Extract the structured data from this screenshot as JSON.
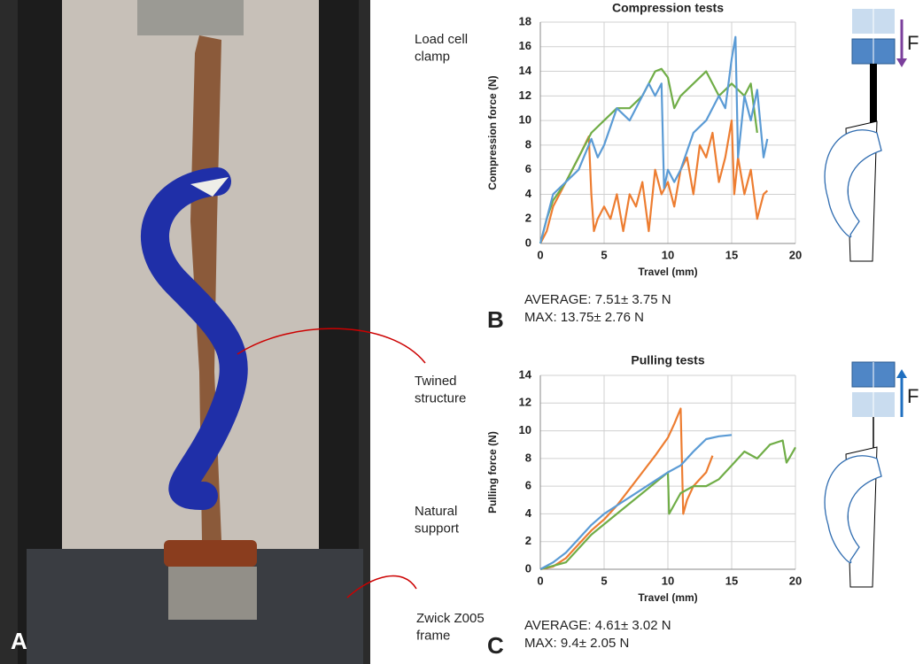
{
  "photo": {
    "panel_label": "A",
    "labels": [
      "Load cell clamp",
      "Twined structure",
      "Natural support",
      "Zwick Z005 frame"
    ]
  },
  "chart_data": [
    {
      "type": "line",
      "panel_label": "B",
      "title": "Compression tests",
      "x_label": "Travel (mm)",
      "y_label": "Compression force (N)",
      "xlim": [
        0,
        20
      ],
      "xticks": [
        0,
        5,
        10,
        15,
        20
      ],
      "ylim": [
        0,
        18
      ],
      "yticks": [
        0,
        2,
        4,
        6,
        8,
        10,
        12,
        14,
        16,
        18
      ],
      "grid": true,
      "annotations": [
        "AVERAGE: 7.51± 3.75 N",
        "MAX: 13.75± 2.76 N"
      ],
      "force_label": "F",
      "force_direction": "down",
      "series": [
        {
          "color": "#ed7d31",
          "x": [
            0,
            0.5,
            1,
            2,
            3,
            3.8,
            4,
            4.2,
            4.5,
            5,
            5.5,
            6,
            6.5,
            7,
            7.5,
            8,
            8.5,
            9,
            9.5,
            10,
            10.5,
            11,
            11.5,
            12,
            12.5,
            13,
            13.5,
            14,
            14.5,
            15,
            15.2,
            15.5,
            16,
            16.5,
            17,
            17.5,
            17.8
          ],
          "values": [
            0,
            1,
            3,
            5,
            7,
            8.7,
            4,
            1,
            2,
            3,
            2,
            4,
            1,
            4,
            3,
            5,
            1,
            6,
            4,
            5,
            3,
            6,
            7,
            4,
            8,
            7,
            9,
            5,
            7,
            10,
            4,
            7,
            4,
            6,
            2,
            4,
            4.3
          ]
        },
        {
          "color": "#70ad47",
          "x": [
            0,
            0.5,
            1,
            2,
            3,
            4,
            5,
            6,
            7,
            8,
            9,
            9.5,
            10,
            10.5,
            11,
            12,
            13,
            14,
            15,
            16,
            16.5,
            17
          ],
          "values": [
            0,
            2,
            3.5,
            5,
            7,
            9,
            10,
            11,
            11,
            12,
            14,
            14.2,
            13.5,
            11,
            12,
            13,
            14,
            12,
            13,
            12,
            13,
            9
          ]
        },
        {
          "color": "#5b9bd5",
          "x": [
            0,
            0.5,
            1,
            2,
            3,
            4,
            4.5,
            5,
            6,
            7,
            8,
            8.5,
            9,
            9.5,
            9.7,
            10,
            10.5,
            11,
            12,
            13,
            14,
            14.5,
            15,
            15.3,
            15.5,
            16,
            16.5,
            17,
            17.5,
            17.8
          ],
          "values": [
            0,
            2,
            4,
            5,
            6,
            8.5,
            7,
            8,
            11,
            10,
            12,
            13,
            12,
            13,
            4.5,
            6,
            5,
            6,
            9,
            10,
            12,
            11,
            15,
            16.8,
            7,
            12,
            10,
            12.5,
            7,
            8.5
          ]
        }
      ]
    },
    {
      "type": "line",
      "panel_label": "C",
      "title": "Pulling tests",
      "x_label": "Travel (mm)",
      "y_label": "Pulling force (N)",
      "xlim": [
        0,
        20
      ],
      "xticks": [
        0,
        5,
        10,
        15,
        20
      ],
      "ylim": [
        0,
        14
      ],
      "yticks": [
        0,
        2,
        4,
        6,
        8,
        10,
        12,
        14
      ],
      "grid": true,
      "annotations": [
        "AVERAGE: 4.61± 3.02 N",
        "MAX: 9.4± 2.05 N"
      ],
      "force_label": "F",
      "force_direction": "up",
      "series": [
        {
          "color": "#ed7d31",
          "x": [
            0,
            1,
            2,
            3,
            4,
            5,
            6,
            7,
            8,
            9,
            10,
            10.5,
            11,
            11.2,
            11.5,
            12,
            12.5,
            13,
            13.5
          ],
          "values": [
            0,
            0.2,
            0.8,
            1.8,
            2.8,
            3.6,
            4.6,
            5.8,
            7,
            8.2,
            9.5,
            10.5,
            11.6,
            4,
            5,
            6,
            6.5,
            7,
            8.2
          ]
        },
        {
          "color": "#70ad47",
          "x": [
            0,
            2,
            4,
            6,
            8,
            10,
            10.1,
            11,
            12,
            13,
            14,
            15,
            16,
            17,
            18,
            19,
            19.3,
            19.5,
            20
          ],
          "values": [
            0,
            0.5,
            2.5,
            4,
            5.5,
            7,
            4,
            5.5,
            6,
            6,
            6.5,
            7.5,
            8.5,
            8,
            9,
            9.3,
            7.7,
            8,
            8.8
          ]
        },
        {
          "color": "#5b9bd5",
          "x": [
            0,
            1,
            2,
            3,
            4,
            5,
            6,
            7,
            8,
            9,
            10,
            11,
            12,
            13,
            14,
            15
          ],
          "values": [
            0,
            0.5,
            1.2,
            2.2,
            3.2,
            4,
            4.6,
            5.2,
            5.8,
            6.4,
            7,
            7.5,
            8.5,
            9.4,
            9.6,
            9.7
          ]
        }
      ]
    }
  ]
}
